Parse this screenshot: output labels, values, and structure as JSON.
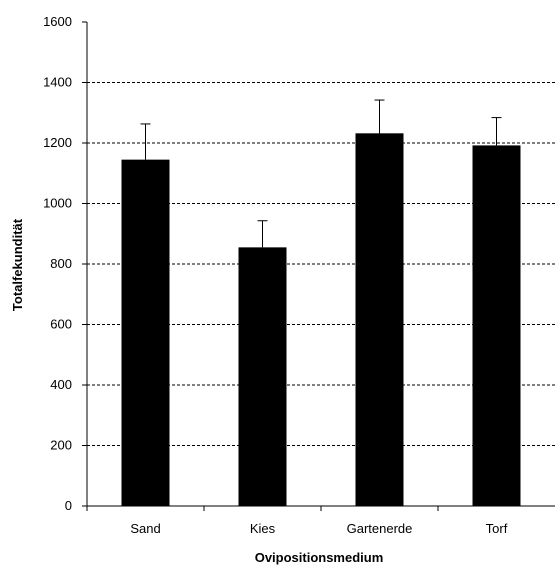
{
  "chart_data": {
    "type": "bar",
    "title": "",
    "xlabel": "Ovipositionsmedium",
    "ylabel": "Totalfekundität",
    "categories": [
      "Sand",
      "Kies",
      "Gartenerde",
      "Torf"
    ],
    "values": [
      1145,
      855,
      1232,
      1192
    ],
    "errors": [
      118,
      88,
      110,
      92
    ],
    "ylim": [
      0,
      1600
    ],
    "yticks": [
      0,
      200,
      400,
      600,
      800,
      1000,
      1200,
      1400,
      1600
    ],
    "grid": "horizontal dashed",
    "colors": {
      "bar": "#000000",
      "grid": "#000000"
    }
  }
}
